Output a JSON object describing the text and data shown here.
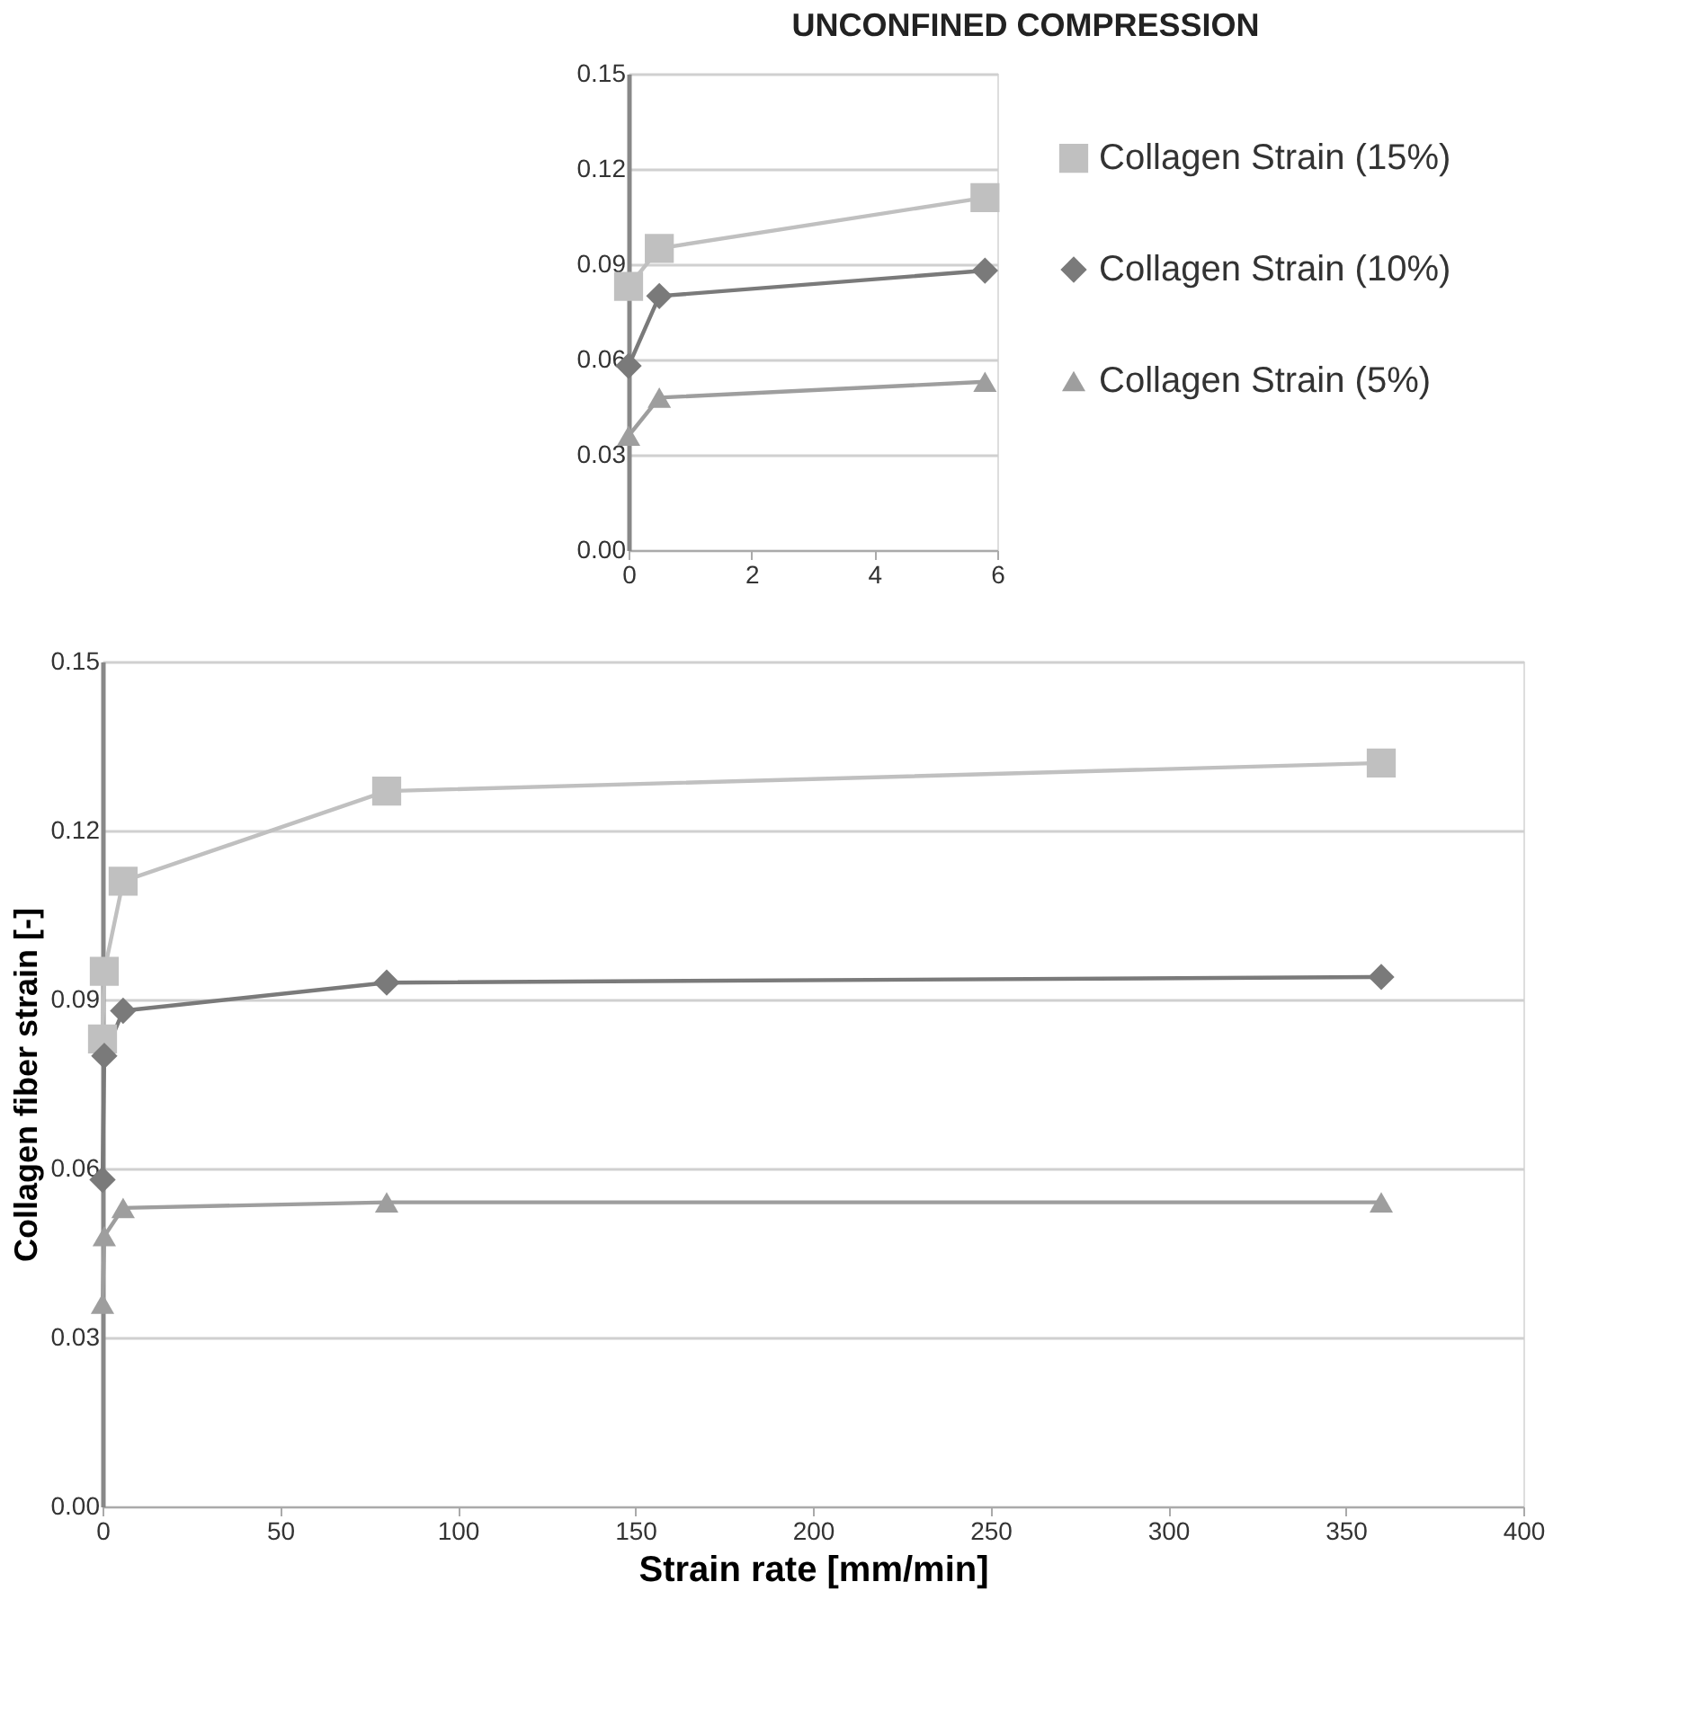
{
  "chart_data": [
    {
      "type": "line",
      "title": "UNCONFINED COMPRESSION",
      "x": [
        0,
        0.5,
        5.8
      ],
      "series": [
        {
          "color": "#c0c0c0",
          "marker": "square",
          "values": [
            0.083,
            0.095,
            0.111
          ]
        },
        {
          "color": "#7a7a7a",
          "marker": "diamond",
          "values": [
            0.058,
            0.08,
            0.088
          ]
        },
        {
          "color": "#9e9e9e",
          "marker": "triangle",
          "values": [
            0.036,
            0.048,
            0.053
          ]
        }
      ],
      "xlim": [
        0,
        6
      ],
      "xticks": [
        0,
        2,
        4,
        6
      ],
      "ylim": [
        0,
        0.15
      ],
      "yticks": [
        {
          "value": 0,
          "label": "0.00"
        },
        0.03,
        0.06,
        0.09,
        0.12,
        0.15
      ],
      "grid": "y"
    },
    {
      "type": "line",
      "xlabel": "Strain rate [mm/min]",
      "ylabel": "Collagen fiber strain [-]",
      "x": [
        0,
        0.5,
        5.8,
        80,
        360
      ],
      "series": [
        {
          "name": "Collagen Strain (15%)",
          "color": "#c0c0c0",
          "marker": "square",
          "values": [
            0.083,
            0.095,
            0.111,
            0.127,
            0.132
          ]
        },
        {
          "name": "Collagen Strain (10%)",
          "color": "#7a7a7a",
          "marker": "diamond",
          "values": [
            0.058,
            0.08,
            0.088,
            0.093,
            0.094
          ]
        },
        {
          "name": "Collagen Strain (5%)",
          "color": "#9e9e9e",
          "marker": "triangle",
          "values": [
            0.036,
            0.048,
            0.053,
            0.054,
            0.054
          ]
        }
      ],
      "xlim": [
        0,
        400
      ],
      "xticks": [
        0,
        50,
        100,
        150,
        200,
        250,
        300,
        350,
        400
      ],
      "ylim": [
        0,
        0.15
      ],
      "yticks": [
        {
          "value": 0,
          "label": "0.00"
        },
        0.03,
        0.06,
        0.09,
        0.12,
        0.15
      ],
      "grid": "y",
      "legend": "top right"
    }
  ]
}
